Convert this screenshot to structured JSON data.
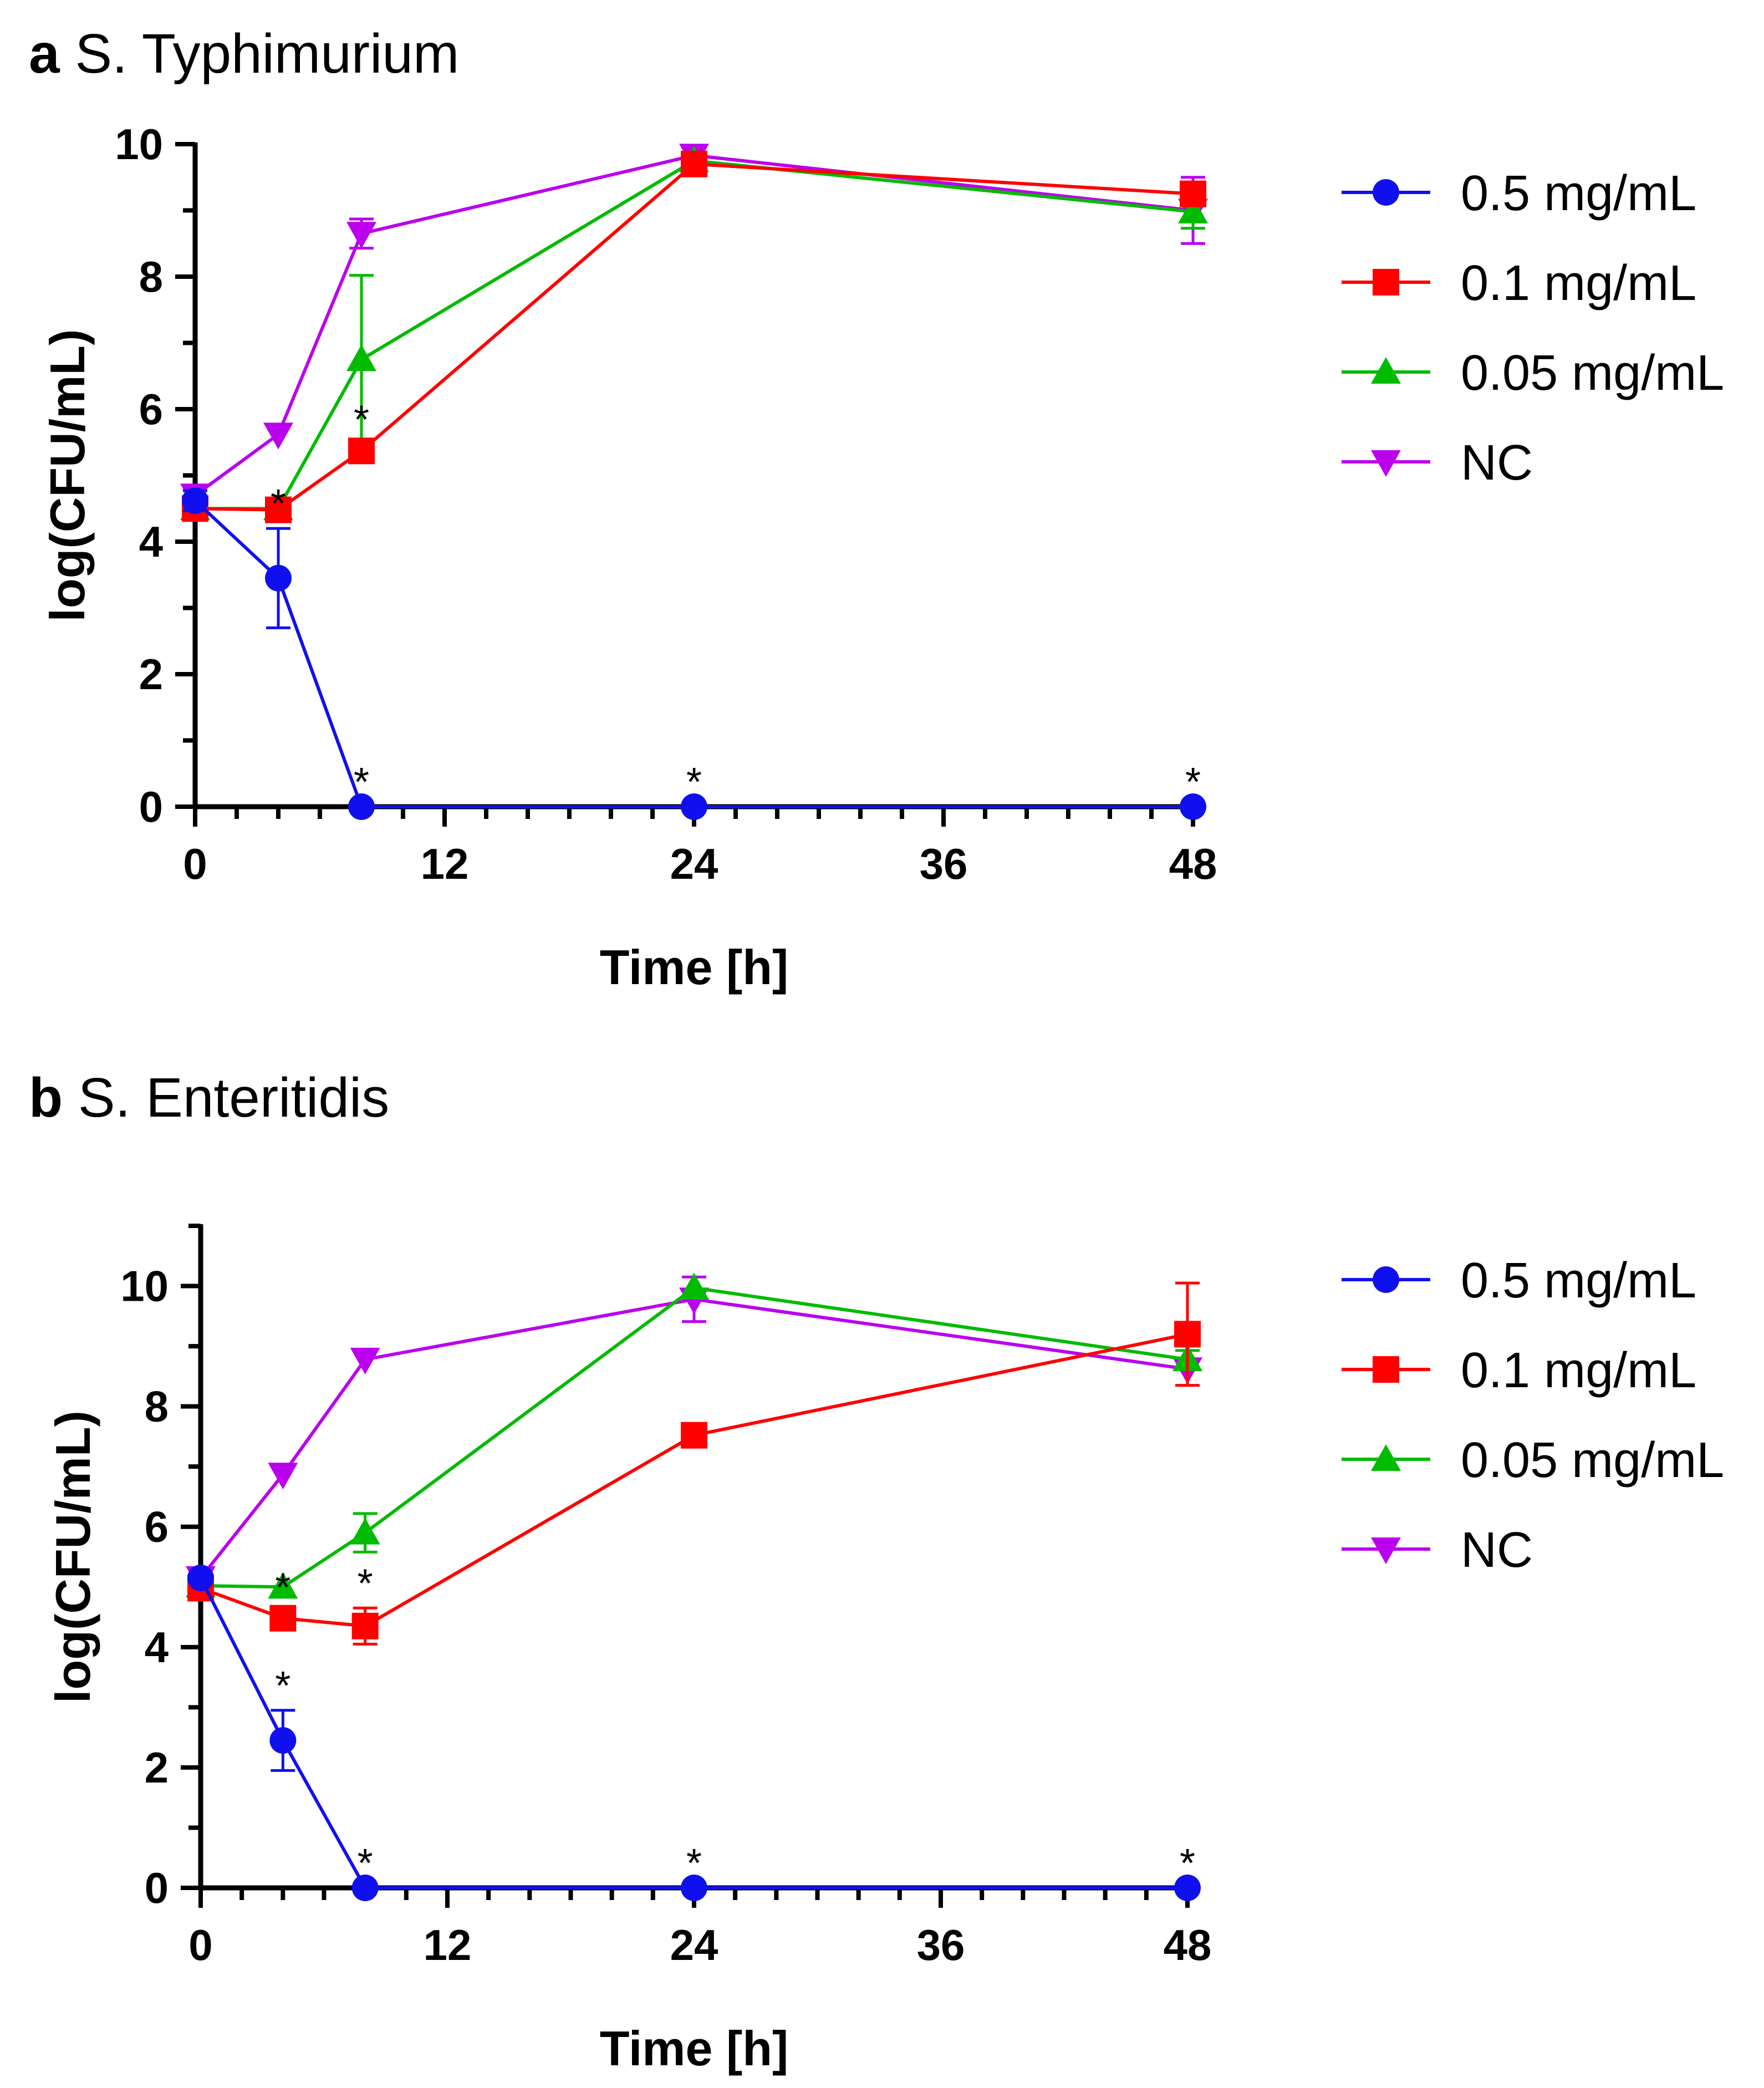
{
  "figure": {
    "panels": [
      {
        "letter": "a",
        "organism": "S. Typhimurium"
      },
      {
        "letter": "b",
        "organism": "S. Enteritidis"
      }
    ]
  },
  "chart_data": [
    {
      "type": "line",
      "panel": "a",
      "title": "S. Typhimurium",
      "xlabel": "Time [h]",
      "ylabel": "log(CFU/mL)",
      "xlim": [
        0,
        48
      ],
      "ylim": [
        0,
        10
      ],
      "xticks": [
        0,
        12,
        24,
        36,
        48
      ],
      "yticks": [
        0,
        2,
        4,
        6,
        8,
        10
      ],
      "x": [
        0,
        4,
        8,
        24,
        48
      ],
      "legend_position": "right",
      "series": [
        {
          "name": "0.5 mg/mL",
          "color": "#1010ee",
          "marker": "circle",
          "values": [
            4.62,
            3.45,
            0,
            0,
            0
          ],
          "errors": [
            0.15,
            0.75,
            0,
            0,
            0
          ],
          "significant": [
            false,
            true,
            true,
            true,
            true
          ]
        },
        {
          "name": "0.1 mg/mL",
          "color": "#ff0000",
          "marker": "square",
          "values": [
            4.5,
            4.48,
            5.37,
            9.7,
            9.25
          ],
          "errors": [
            0.08,
            0.08,
            0.1,
            0.08,
            0.08
          ],
          "significant": [
            false,
            false,
            true,
            false,
            false
          ]
        },
        {
          "name": "0.05 mg/mL",
          "color": "#00bb00",
          "marker": "triangle-up",
          "values": [
            4.5,
            4.5,
            6.75,
            9.75,
            8.98
          ],
          "errors": [
            0.08,
            0.08,
            1.27,
            0.08,
            0.25
          ],
          "significant": [
            false,
            false,
            false,
            false,
            false
          ]
        },
        {
          "name": "NC",
          "color": "#bb00ee",
          "marker": "triangle-down",
          "values": [
            4.7,
            5.62,
            8.65,
            9.83,
            9.0
          ],
          "errors": [
            0.08,
            0.08,
            0.22,
            0.08,
            0.5
          ],
          "significant": [
            false,
            false,
            false,
            false,
            false
          ]
        }
      ]
    },
    {
      "type": "line",
      "panel": "b",
      "title": "S. Enteritidis",
      "xlabel": "Time [h]",
      "ylabel": "log(CFU/mL)",
      "xlim": [
        0,
        48
      ],
      "ylim": [
        0,
        11
      ],
      "xticks": [
        0,
        12,
        24,
        36,
        48
      ],
      "yticks": [
        0,
        2,
        4,
        6,
        8,
        10
      ],
      "x": [
        0,
        4,
        8,
        24,
        48
      ],
      "legend_position": "right",
      "series": [
        {
          "name": "0.5 mg/mL",
          "color": "#1010ee",
          "marker": "circle",
          "values": [
            5.15,
            2.45,
            0,
            0,
            0
          ],
          "errors": [
            0.1,
            0.5,
            0,
            0,
            0
          ],
          "significant": [
            false,
            true,
            true,
            true,
            true
          ]
        },
        {
          "name": "0.1 mg/mL",
          "color": "#ff0000",
          "marker": "square",
          "values": [
            4.98,
            4.48,
            4.35,
            7.52,
            9.2
          ],
          "errors": [
            0.08,
            0.1,
            0.3,
            0.08,
            0.85
          ],
          "significant": [
            false,
            true,
            true,
            false,
            false
          ]
        },
        {
          "name": "0.05 mg/mL",
          "color": "#00bb00",
          "marker": "triangle-up",
          "values": [
            5.02,
            5.0,
            5.9,
            9.97,
            8.78
          ],
          "errors": [
            0.08,
            0.08,
            0.32,
            0.08,
            0.15
          ],
          "significant": [
            false,
            false,
            false,
            false,
            false
          ]
        },
        {
          "name": "NC",
          "color": "#bb00ee",
          "marker": "triangle-down",
          "values": [
            5.15,
            6.87,
            8.78,
            9.78,
            8.62
          ],
          "errors": [
            0.08,
            0.08,
            0.08,
            0.37,
            0.08
          ],
          "significant": [
            false,
            false,
            false,
            false,
            false
          ]
        }
      ]
    }
  ]
}
